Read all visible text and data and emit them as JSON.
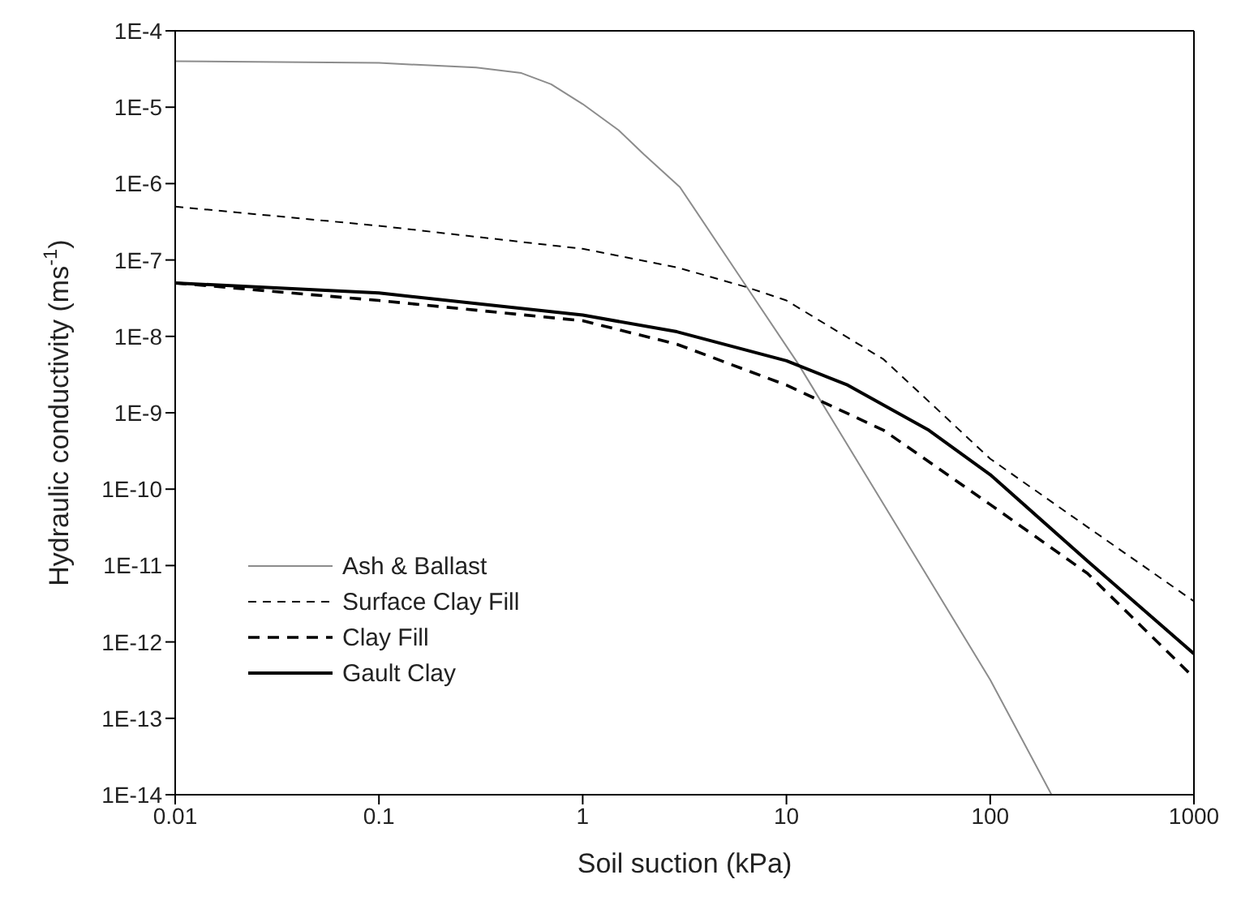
{
  "chart_data": {
    "type": "line",
    "xlabel": "Soil suction (kPa)",
    "ylabel": "Hydraulic conductivity (ms$^{-1}$)",
    "log": "xy",
    "legend": "bottom left",
    "marker": "none",
    "xlim": [
      0.01,
      1000
    ],
    "xticks": [
      0.01,
      0.1,
      1,
      10,
      100,
      1000
    ],
    "ylim": [
      1e-14,
      0.0001
    ],
    "yticks": [
      {
        "value": 1e-14,
        "label": "1E-14"
      },
      {
        "value": 1e-13,
        "label": "1E-13"
      },
      {
        "value": 1e-12,
        "label": "1E-12"
      },
      {
        "value": 1e-11,
        "label": "1E-11"
      },
      {
        "value": 1e-10,
        "label": "1E-10"
      },
      {
        "value": 1e-09,
        "label": "1E-9"
      },
      {
        "value": 1e-08,
        "label": "1E-8"
      },
      {
        "value": 1e-07,
        "label": "1E-7"
      },
      {
        "value": 1e-06,
        "label": "1E-6"
      },
      {
        "value": 1e-05,
        "label": "1E-5"
      },
      {
        "value": 0.0001,
        "label": "1E-4"
      }
    ],
    "series": [
      {
        "name": "Ash & Ballast",
        "color": "#8c8c8c",
        "line_style": "solid",
        "x": [
          0.01,
          0.1,
          0.3,
          0.5,
          0.7,
          1,
          1.5,
          2,
          3,
          6.4,
          11.4,
          30,
          100,
          200
        ],
        "values": [
          4e-05,
          3.8e-05,
          3.3e-05,
          2.8e-05,
          2e-05,
          1.1e-05,
          5e-06,
          2.4e-06,
          9e-07,
          4.4e-08,
          4.4e-09,
          6.3e-11,
          3.2e-13,
          1e-14
        ]
      },
      {
        "name": "Surface Clay Fill",
        "color": "#000000",
        "line_style": "dashed",
        "x": [
          0.01,
          0.1,
          1,
          2.9,
          6.4,
          10,
          30,
          100,
          300,
          1000
        ],
        "values": [
          5e-07,
          2.8e-07,
          1.4e-07,
          8e-08,
          4.4e-08,
          2.95e-08,
          5e-09,
          2.5e-10,
          3.2e-11,
          3.4e-12
        ]
      },
      {
        "name": "Clay Fill",
        "color": "#000000",
        "line_style": "dashed",
        "x": [
          0.01,
          0.1,
          1,
          2.9,
          10,
          30,
          100,
          300,
          1000
        ],
        "values": [
          5e-08,
          2.95e-08,
          1.6e-08,
          7.9e-09,
          2.3e-09,
          5.9e-10,
          6.3e-11,
          7.9e-12,
          3.4e-13
        ]
      },
      {
        "name": "Gault Clay",
        "color": "#000000",
        "line_style": "solid",
        "x": [
          0.01,
          0.1,
          1,
          2.9,
          10,
          20,
          50,
          100,
          300,
          1000
        ],
        "values": [
          5e-08,
          3.7e-08,
          1.9e-08,
          1.15e-08,
          4.8e-09,
          2.3e-09,
          5.9e-10,
          1.55e-10,
          1.15e-11,
          7e-13
        ]
      }
    ]
  }
}
